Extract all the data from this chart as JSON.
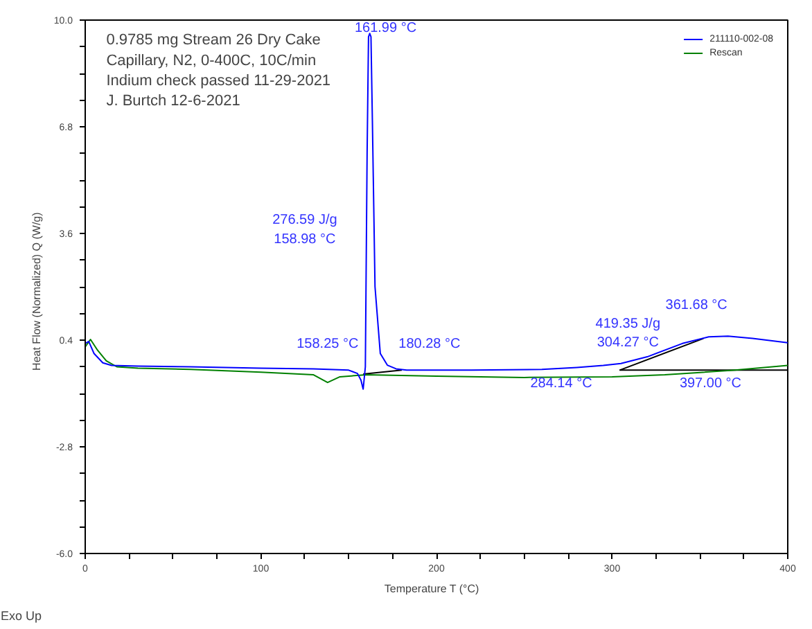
{
  "chart_data": {
    "type": "line",
    "xlabel": "Temperature   T  (°C)",
    "ylabel": "Heat Flow (Normalized)   Q  (W/g)",
    "xlim": [
      0,
      400
    ],
    "ylim": [
      -6.0,
      10.0
    ],
    "xticks": [
      0,
      {
        "value": 25,
        "label": null
      },
      {
        "value": 50,
        "label": null
      },
      {
        "value": 75,
        "label": null
      },
      100,
      {
        "value": 125,
        "label": null
      },
      {
        "value": 150,
        "label": null
      },
      {
        "value": 175,
        "label": null
      },
      200,
      {
        "value": 225,
        "label": null
      },
      {
        "value": 250,
        "label": null
      },
      {
        "value": 275,
        "label": null
      },
      300,
      {
        "value": 325,
        "label": null
      },
      {
        "value": 350,
        "label": null
      },
      {
        "value": 375,
        "label": null
      },
      400
    ],
    "yticks": [
      {
        "value": -6.0,
        "label": "-6.0"
      },
      {
        "value": -5.2,
        "label": null
      },
      {
        "value": -4.4,
        "label": null
      },
      {
        "value": -3.6,
        "label": null
      },
      -2.8,
      {
        "value": -2.0,
        "label": null
      },
      {
        "value": -1.2,
        "label": null
      },
      {
        "value": -0.4,
        "label": null
      },
      0.4,
      {
        "value": 1.2,
        "label": null
      },
      {
        "value": 2.0,
        "label": null
      },
      {
        "value": 2.8,
        "label": null
      },
      3.6,
      {
        "value": 4.4,
        "label": null
      },
      {
        "value": 5.2,
        "label": null
      },
      {
        "value": 6.0,
        "label": null
      },
      6.8,
      {
        "value": 7.6,
        "label": null
      },
      {
        "value": 8.4,
        "label": null
      },
      {
        "value": 9.2,
        "label": null
      },
      {
        "value": 10.0,
        "label": "10.0"
      }
    ],
    "grid": false,
    "legend": "top right",
    "marker": "none",
    "line_style": "solid",
    "series": [
      {
        "name": "211110-002-08",
        "color": "#0000ff",
        "x": [
          0,
          2,
          5,
          10,
          15,
          30,
          60,
          100,
          130,
          150,
          155,
          157,
          158.25,
          159.5,
          160.5,
          161.3,
          161.99,
          162.7,
          163.5,
          165,
          168,
          172,
          177,
          183,
          220,
          260,
          280,
          295,
          305,
          320,
          340,
          355,
          366,
          380,
          400
        ],
        "values": [
          0.3,
          0.36,
          0.0,
          -0.28,
          -0.36,
          -0.38,
          -0.4,
          -0.44,
          -0.46,
          -0.5,
          -0.6,
          -0.8,
          -1.07,
          -0.4,
          6.0,
          9.5,
          9.6,
          9.5,
          7.0,
          2.0,
          0.0,
          -0.35,
          -0.46,
          -0.5,
          -0.5,
          -0.48,
          -0.42,
          -0.36,
          -0.3,
          -0.1,
          0.3,
          0.5,
          0.52,
          0.45,
          0.32
        ]
      },
      {
        "name": "Rescan",
        "color": "#008000",
        "x": [
          0,
          3,
          7,
          12,
          18,
          30,
          60,
          100,
          130,
          138,
          145,
          160,
          200,
          250,
          300,
          330,
          370,
          400
        ],
        "values": [
          0.2,
          0.42,
          0.1,
          -0.22,
          -0.4,
          -0.44,
          -0.48,
          -0.56,
          -0.64,
          -0.87,
          -0.7,
          -0.64,
          -0.68,
          -0.72,
          -0.7,
          -0.64,
          -0.5,
          -0.36
        ]
      },
      {
        "color": "#000000",
        "x": [
          158.25,
          180.28
        ],
        "values": [
          -0.62,
          -0.5
        ]
      },
      {
        "color": "#000000",
        "x": [
          304.27,
          352
        ],
        "values": [
          -0.5,
          0.45
        ]
      },
      {
        "color": "#000000",
        "x": [
          304.27,
          400
        ],
        "values": [
          -0.5,
          -0.5
        ]
      }
    ],
    "annotations": [
      "0.9785 mg Stream 26 Dry Cake",
      "Capillary, N2, 0-400C, 10C/min",
      "Indium check passed 11-29-2021",
      "J. Burtch 12-6-2021",
      "Exo Up",
      "161.99 °C",
      "276.59 J/g",
      "158.98 °C",
      "158.25 °C",
      "180.28 °C",
      "419.35 J/g",
      "304.27 °C",
      "361.68 °C",
      "284.14 °C",
      "397.00 °C"
    ]
  }
}
